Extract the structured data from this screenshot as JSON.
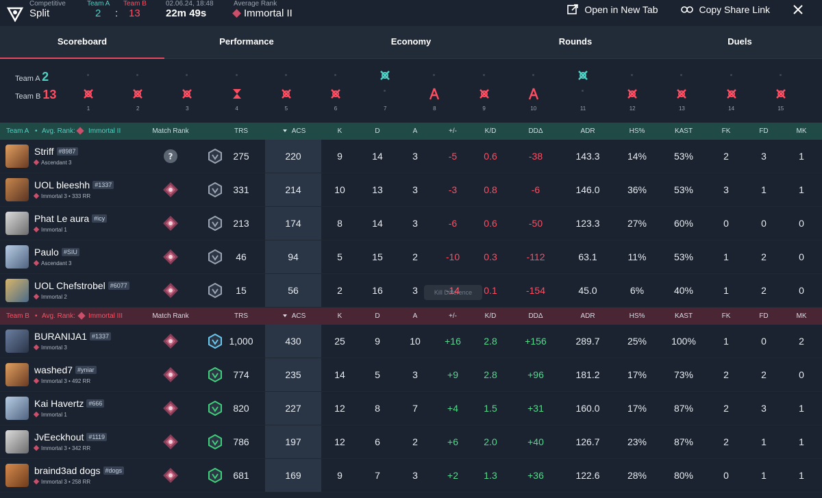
{
  "header": {
    "mode": "Competitive",
    "map": "Split",
    "teamA_label": "Team A",
    "teamB_label": "Team B",
    "teamA_score": "2",
    "score_sep": ":",
    "teamB_score": "13",
    "datetime": "02.06.24, 18:48",
    "duration": "22m 49s",
    "avg_rank_label": "Average Rank",
    "avg_rank": "Immortal II",
    "open_new_tab": "Open in New Tab",
    "copy_share": "Copy Share Link"
  },
  "tabs": [
    "Scoreboard",
    "Performance",
    "Economy",
    "Rounds",
    "Duels"
  ],
  "round_timeline": {
    "teamA_label": "Team A",
    "teamA_score": "2",
    "teamB_label": "Team B",
    "teamB_score": "13",
    "rounds": [
      {
        "n": "1",
        "winner": "B",
        "icon": "elimination"
      },
      {
        "n": "2",
        "winner": "B",
        "icon": "elimination"
      },
      {
        "n": "3",
        "winner": "B",
        "icon": "elimination"
      },
      {
        "n": "4",
        "winner": "B",
        "icon": "timer"
      },
      {
        "n": "5",
        "winner": "B",
        "icon": "elimination"
      },
      {
        "n": "6",
        "winner": "B",
        "icon": "elimination"
      },
      {
        "n": "7",
        "winner": "A",
        "icon": "elimination"
      },
      {
        "n": "8",
        "winner": "B",
        "icon": "defuse"
      },
      {
        "n": "9",
        "winner": "B",
        "icon": "elimination"
      },
      {
        "n": "10",
        "winner": "B",
        "icon": "defuse"
      },
      {
        "n": "11",
        "winner": "A",
        "icon": "elimination"
      },
      {
        "n": "12",
        "winner": "B",
        "icon": "elimination"
      },
      {
        "n": "13",
        "winner": "B",
        "icon": "elimination"
      },
      {
        "n": "14",
        "winner": "B",
        "icon": "elimination"
      },
      {
        "n": "15",
        "winner": "B",
        "icon": "elimination"
      }
    ]
  },
  "columns": {
    "match_rank": "Match Rank",
    "trs": "TRS",
    "acs": "ACS",
    "k": "K",
    "d": "D",
    "a": "A",
    "pm": "+/-",
    "kd": "K/D",
    "dd": "DDΔ",
    "adr": "ADR",
    "hs": "HS%",
    "kast": "KAST",
    "fk": "FK",
    "fd": "FD",
    "mk": "MK"
  },
  "teamA": {
    "label": "Team A",
    "dot": "•",
    "avg_rank_label": "Avg. Rank:",
    "avg_rank": "Immortal II",
    "players": [
      {
        "name": "Striff",
        "tag": "#8987",
        "rank": "Ascendant 3",
        "trs": "275",
        "acs": "220",
        "k": "9",
        "d": "14",
        "a": "3",
        "pm": "-5",
        "kd": "0.6",
        "dd": "-38",
        "adr": "143.3",
        "hs": "14%",
        "kast": "53%",
        "fk": "2",
        "fd": "3",
        "mk": "1",
        "unknown": true
      },
      {
        "name": "UOL bleeshh",
        "tag": "#1337",
        "rank": "Immortal 3 • 333 RR",
        "trs": "331",
        "acs": "214",
        "k": "10",
        "d": "13",
        "a": "3",
        "pm": "-3",
        "kd": "0.8",
        "dd": "-6",
        "adr": "146.0",
        "hs": "36%",
        "kast": "53%",
        "fk": "3",
        "fd": "1",
        "mk": "1"
      },
      {
        "name": "Phat Le aura",
        "tag": "#icy",
        "rank": "Immortal 1",
        "trs": "213",
        "acs": "174",
        "k": "8",
        "d": "14",
        "a": "3",
        "pm": "-6",
        "kd": "0.6",
        "dd": "-50",
        "adr": "123.3",
        "hs": "27%",
        "kast": "60%",
        "fk": "0",
        "fd": "0",
        "mk": "0"
      },
      {
        "name": "Paulo",
        "tag": "#SIU",
        "rank": "Ascendant 3",
        "trs": "46",
        "acs": "94",
        "k": "5",
        "d": "15",
        "a": "2",
        "pm": "-10",
        "kd": "0.3",
        "dd": "-112",
        "adr": "63.1",
        "hs": "11%",
        "kast": "53%",
        "fk": "1",
        "fd": "2",
        "mk": "0"
      },
      {
        "name": "UOL Chefstrobel",
        "tag": "#6077",
        "rank": "Immortal 2",
        "trs": "15",
        "acs": "56",
        "k": "2",
        "d": "16",
        "a": "3",
        "pm": "-14",
        "kd": "0.1",
        "dd": "-154",
        "adr": "45.0",
        "hs": "6%",
        "kast": "40%",
        "fk": "1",
        "fd": "2",
        "mk": "0"
      }
    ]
  },
  "teamB": {
    "label": "Team B",
    "dot": "•",
    "avg_rank_label": "Avg. Rank:",
    "avg_rank": "Immortal III",
    "players": [
      {
        "name": "BURANIJA1",
        "tag": "#1337",
        "rank": "Immortal 3",
        "trs": "1,000",
        "acs": "430",
        "k": "25",
        "d": "9",
        "a": "10",
        "pm": "+16",
        "kd": "2.8",
        "dd": "+156",
        "adr": "289.7",
        "hs": "25%",
        "kast": "100%",
        "fk": "1",
        "fd": "0",
        "mk": "2"
      },
      {
        "name": "washed7",
        "tag": "#yniar",
        "rank": "Immortal 3 • 492 RR",
        "trs": "774",
        "acs": "235",
        "k": "14",
        "d": "5",
        "a": "3",
        "pm": "+9",
        "kd": "2.8",
        "dd": "+96",
        "adr": "181.2",
        "hs": "17%",
        "kast": "73%",
        "fk": "2",
        "fd": "2",
        "mk": "0"
      },
      {
        "name": "Kai Havertz",
        "tag": "#666",
        "rank": "Immortal 1",
        "trs": "820",
        "acs": "227",
        "k": "12",
        "d": "8",
        "a": "7",
        "pm": "+4",
        "kd": "1.5",
        "dd": "+31",
        "adr": "160.0",
        "hs": "17%",
        "kast": "87%",
        "fk": "2",
        "fd": "3",
        "mk": "1"
      },
      {
        "name": "JvEeckhout",
        "tag": "#1119",
        "rank": "Immortal 3 • 342 RR",
        "trs": "786",
        "acs": "197",
        "k": "12",
        "d": "6",
        "a": "2",
        "pm": "+6",
        "kd": "2.0",
        "dd": "+40",
        "adr": "126.7",
        "hs": "23%",
        "kast": "87%",
        "fk": "2",
        "fd": "1",
        "mk": "1"
      },
      {
        "name": "braind3ad dogs",
        "tag": "#dogs",
        "rank": "Immortal 3 • 258 RR",
        "trs": "681",
        "acs": "169",
        "k": "9",
        "d": "7",
        "a": "3",
        "pm": "+2",
        "kd": "1.3",
        "dd": "+36",
        "adr": "122.6",
        "hs": "28%",
        "kast": "80%",
        "fk": "0",
        "fd": "1",
        "mk": "1"
      }
    ]
  },
  "tooltip": "Kill Difference",
  "colors": {
    "teamA": "#4fd1c5",
    "teamB": "#ff4e62",
    "positive": "#55d98b",
    "negative": "#ff4e62"
  }
}
